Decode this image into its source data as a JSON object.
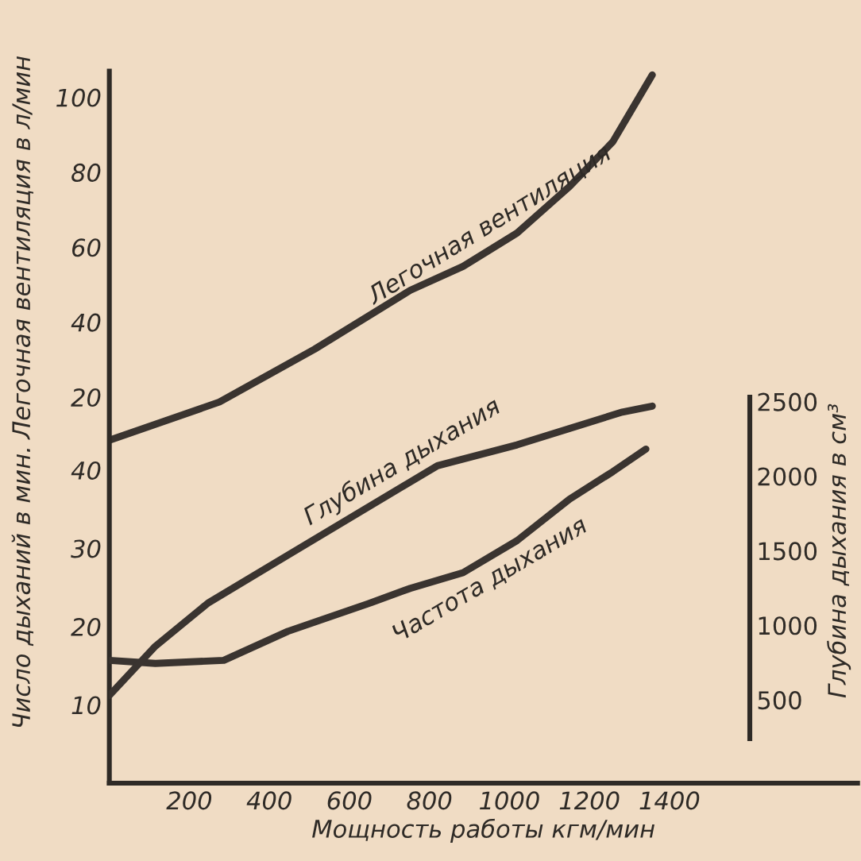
{
  "chart_data": {
    "type": "line",
    "xlabel": "Мощность работы кгм/мин",
    "ylabel": "Легочная вентиляция в л/мин",
    "y2label": "Глубина дыхания в см³",
    "y3label": "Число дыханий в мин.",
    "xlim": [
      0,
      1870
    ],
    "xticks": [
      200,
      400,
      600,
      800,
      1000,
      1200,
      1400
    ],
    "ylim": [
      -83,
      107
    ],
    "yticks": [
      20,
      40,
      60,
      80,
      100
    ],
    "y2lim": [
      240,
      2530
    ],
    "y2ticks": [
      500,
      1000,
      1500,
      2000,
      2500
    ],
    "y3lim": [
      0,
      91
    ],
    "y3ticks": [
      10,
      20,
      30,
      40
    ],
    "grid": false,
    "legend": false,
    "marker": "none",
    "line_style": "solid",
    "series": [
      {
        "name": "Легочная вентиляция",
        "color": "#3a3430",
        "axis": "y",
        "x": [
          0,
          275,
          513,
          752,
          884,
          1019,
          1150,
          1258,
          1357
        ],
        "values": [
          8.5,
          18.7,
          32.8,
          48.5,
          54.9,
          63.8,
          76.2,
          88.1,
          106
        ]
      },
      {
        "name": "Глубина дыхания",
        "color": "#3a3430",
        "axis": "y2",
        "x": [
          0,
          115,
          247,
          446,
          645,
          820,
          1019,
          1150,
          1282,
          1357
        ],
        "values": [
          530,
          860,
          1150,
          1470,
          1790,
          2070,
          2210,
          2320,
          2430,
          2470
        ]
      },
      {
        "name": "Частота дыхания",
        "color": "#3a3430",
        "axis": "y3",
        "x": [
          0,
          115,
          286,
          446,
          645,
          752,
          884,
          1019,
          1150,
          1258,
          1341
        ],
        "values": [
          15.7,
          15.3,
          15.7,
          19.4,
          22.9,
          24.9,
          26.9,
          31.0,
          36.3,
          39.8,
          42.7
        ]
      }
    ]
  }
}
